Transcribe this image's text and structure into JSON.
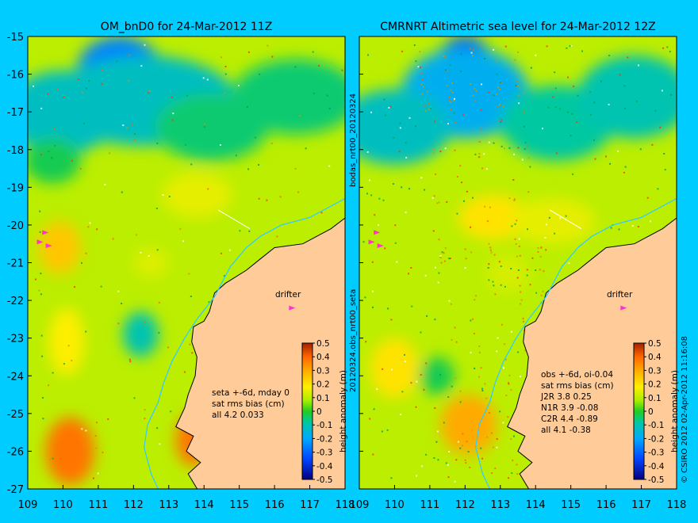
{
  "colors": {
    "background": "#00ccff",
    "land": "#ffcc99",
    "coast_line": "#000000",
    "isobath_line": "#33ccff",
    "drifter_marker": "#ff33cc"
  },
  "left_panel": {
    "title": "OM_bnD0 for 24-Mar-2012 11Z",
    "annotation_lines": [
      "seta +-6d, mday 0",
      "sat rms bias (cm)",
      "all 4.2 0.033"
    ],
    "drifter_label": "drifter"
  },
  "right_panel": {
    "title": "CMRNRT Altimetric sea level  for 24-Mar-2012 12Z",
    "annotation_lines": [
      "obs +-6d, oi-0.04",
      "sat rms bias (cm)",
      "J2R   3.8  0.25",
      "N1R   3.9 -0.08",
      "C2R   4.4 -0.89",
      "all 4.1 -0.38"
    ],
    "drifter_label": "drifter"
  },
  "middle_labels": {
    "upper": "bodas_nrt00_20120324",
    "lower": "20120324.obs_nrt00_seta"
  },
  "credit": "© CSIRO 2012   02-Apr-2012 11:16:08",
  "axes": {
    "y_ticks": [
      "-15",
      "-16",
      "-17",
      "-18",
      "-19",
      "-20",
      "-21",
      "-22",
      "-23",
      "-24",
      "-25",
      "-26",
      "-27"
    ],
    "x_ticks": [
      "109",
      "110",
      "111",
      "112",
      "113",
      "114",
      "115",
      "116",
      "117",
      "118"
    ]
  },
  "colorbar": {
    "label": "height anomaly (m)",
    "ticks": [
      "0.5",
      "0.4",
      "0.3",
      "0.2",
      "0.1",
      "0",
      "-0.1",
      "-0.2",
      "-0.3",
      "-0.4",
      "-0.5"
    ]
  },
  "map_data": {
    "lon_range": [
      109,
      118
    ],
    "lat_range": [
      -27,
      -15
    ],
    "value_range": [
      -0.5,
      0.5
    ],
    "background_anomaly": 0.1,
    "left_features": [
      {
        "lon": 111.6,
        "lat": -15.9,
        "value": -0.26,
        "r_lon": 1.2,
        "r_lat": 0.9
      },
      {
        "lon": 112.3,
        "lat": -16.7,
        "value": -0.12,
        "r_lon": 2.6,
        "r_lat": 1.2
      },
      {
        "lon": 110.0,
        "lat": -17.0,
        "value": -0.12,
        "r_lon": 1.6,
        "r_lat": 1.1
      },
      {
        "lon": 114.2,
        "lat": -17.4,
        "value": -0.05,
        "r_lon": 1.6,
        "r_lat": 0.9
      },
      {
        "lon": 116.6,
        "lat": -16.6,
        "value": -0.05,
        "r_lon": 1.8,
        "r_lat": 1.0
      },
      {
        "lon": 109.7,
        "lat": -18.3,
        "value": -0.03,
        "r_lon": 0.8,
        "r_lat": 0.6
      },
      {
        "lon": 113.8,
        "lat": -19.2,
        "value": 0.15,
        "r_lon": 1.0,
        "r_lat": 0.6
      },
      {
        "lon": 109.9,
        "lat": -20.6,
        "value": 0.25,
        "r_lon": 0.6,
        "r_lat": 0.7
      },
      {
        "lon": 112.2,
        "lat": -22.9,
        "value": -0.1,
        "r_lon": 0.5,
        "r_lat": 0.6
      },
      {
        "lon": 110.1,
        "lat": -23.1,
        "value": 0.18,
        "r_lon": 0.5,
        "r_lat": 0.9
      },
      {
        "lon": 110.2,
        "lat": -26.0,
        "value": 0.38,
        "r_lon": 0.7,
        "r_lat": 0.9
      },
      {
        "lon": 113.7,
        "lat": -25.7,
        "value": 0.38,
        "r_lon": 0.5,
        "r_lat": 0.7
      },
      {
        "lon": 112.5,
        "lat": -21.0,
        "value": 0.14,
        "r_lon": 0.5,
        "r_lat": 0.4
      }
    ],
    "right_features": [
      {
        "lon": 112.0,
        "lat": -15.8,
        "value": -0.33,
        "r_lon": 0.8,
        "r_lat": 0.8
      },
      {
        "lon": 112.0,
        "lat": -16.5,
        "value": -0.18,
        "r_lon": 1.8,
        "r_lat": 1.2
      },
      {
        "lon": 110.0,
        "lat": -17.4,
        "value": -0.12,
        "r_lon": 1.6,
        "r_lat": 1.0
      },
      {
        "lon": 114.6,
        "lat": -17.3,
        "value": -0.08,
        "r_lon": 1.6,
        "r_lat": 1.0
      },
      {
        "lon": 116.8,
        "lat": -16.6,
        "value": -0.1,
        "r_lon": 1.6,
        "r_lat": 1.1
      },
      {
        "lon": 112.8,
        "lat": -19.8,
        "value": 0.2,
        "r_lon": 1.0,
        "r_lat": 0.6
      },
      {
        "lon": 114.5,
        "lat": -19.9,
        "value": 0.15,
        "r_lon": 1.2,
        "r_lat": 0.6
      },
      {
        "lon": 110.0,
        "lat": -23.8,
        "value": 0.2,
        "r_lon": 0.7,
        "r_lat": 0.8
      },
      {
        "lon": 112.1,
        "lat": -25.3,
        "value": 0.3,
        "r_lon": 0.8,
        "r_lat": 0.8
      },
      {
        "lon": 111.2,
        "lat": -24.0,
        "value": -0.03,
        "r_lon": 0.5,
        "r_lat": 0.5
      },
      {
        "lon": 113.2,
        "lat": -21.3,
        "value": 0.13,
        "r_lon": 0.6,
        "r_lat": 0.5
      }
    ]
  }
}
